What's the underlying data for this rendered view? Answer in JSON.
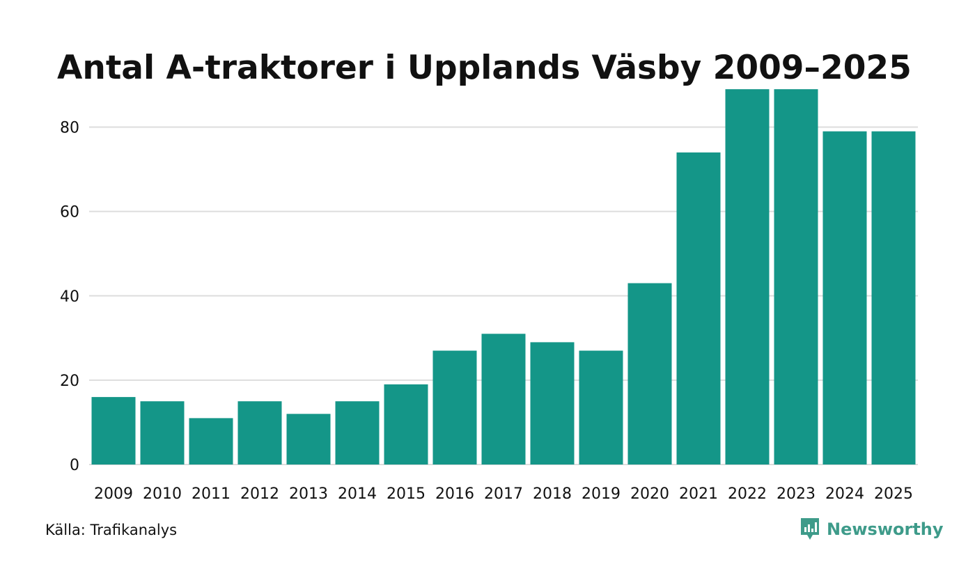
{
  "chart_data": {
    "type": "bar",
    "title": "Antal A-traktorer i Upplands Väsby 2009–2025",
    "categories": [
      "2009",
      "2010",
      "2011",
      "2012",
      "2013",
      "2014",
      "2015",
      "2016",
      "2017",
      "2018",
      "2019",
      "2020",
      "2021",
      "2022",
      "2023",
      "2024",
      "2025"
    ],
    "values": [
      16,
      15,
      11,
      15,
      12,
      15,
      19,
      27,
      31,
      29,
      27,
      43,
      74,
      89,
      89,
      79,
      79
    ],
    "xlabel": "",
    "ylabel": "",
    "ylim": [
      0,
      90
    ],
    "yticks": [
      0,
      20,
      40,
      60,
      80
    ],
    "grid": true,
    "bar_color": "#149688",
    "grid_color": "#dddddd"
  },
  "source": "Källa: Trafikanalys",
  "brand": {
    "name": "Newsworthy",
    "icon": "newsworthy-logo-icon",
    "color": "#3e9b8a"
  }
}
